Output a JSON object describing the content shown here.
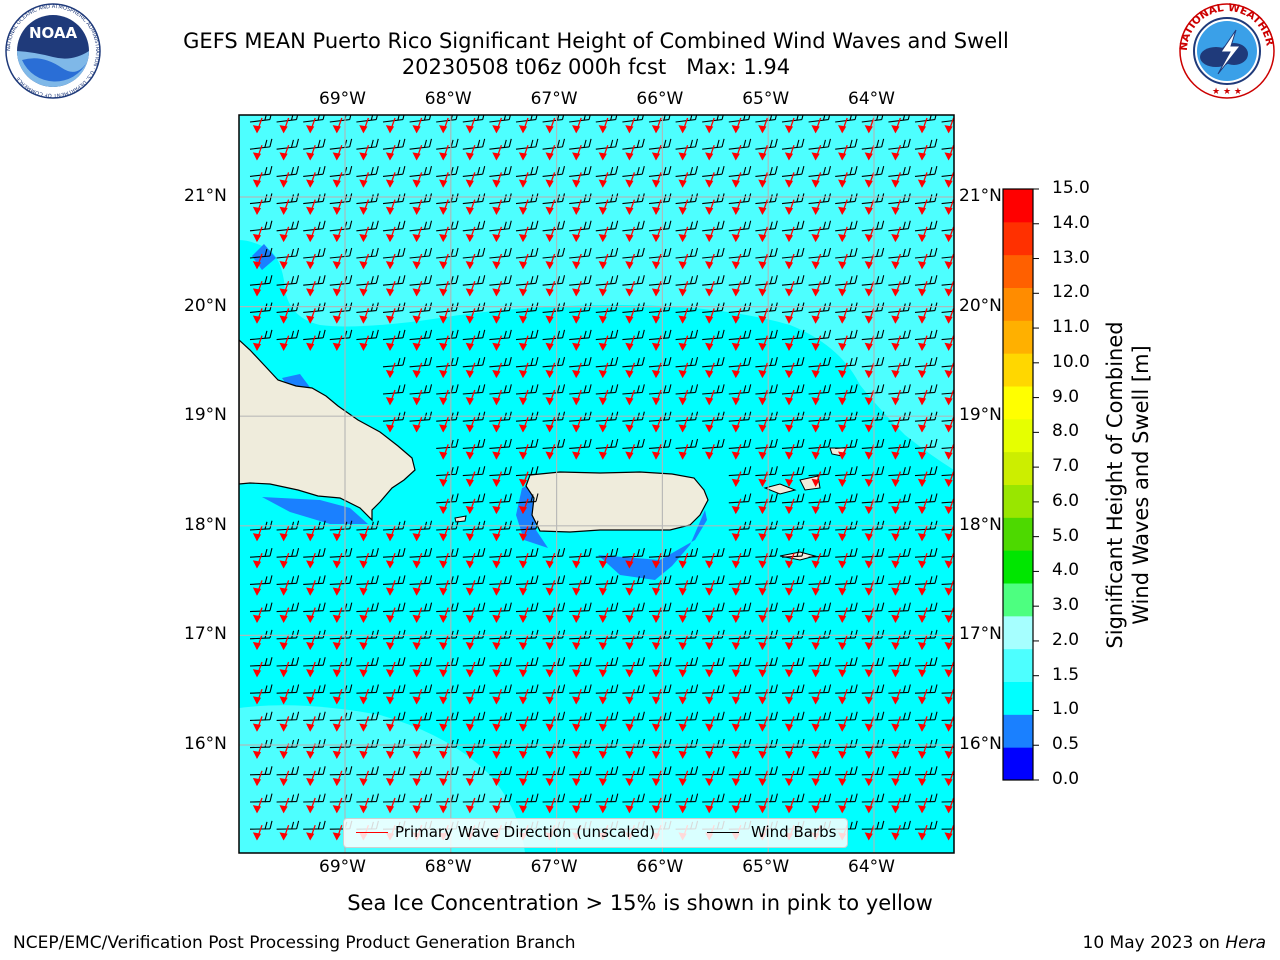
{
  "title": {
    "line1": "GEFS MEAN Puerto Rico Significant Height of Combined Wind Waves and Swell",
    "line2": "20230508 t06z 000h fcst   Max: 1.94"
  },
  "logos": {
    "left_text": "NOAA",
    "left_ring": "NATIONAL OCEANIC AND ATMOSPHERIC ADMINISTRATION · U.S. DEPARTMENT OF COMMERCE",
    "right_ring": "NATIONAL WEATHER SERVICE"
  },
  "map": {
    "lon_labels": [
      "69°W",
      "68°W",
      "67°W",
      "66°W",
      "65°W",
      "64°W"
    ],
    "lat_labels": [
      "21°N",
      "20°N",
      "19°N",
      "18°N",
      "17°N",
      "16°N"
    ],
    "lon_range": [
      -70.0,
      -63.25
    ],
    "lat_range": [
      15.0,
      21.75
    ],
    "ocean_color": "#00ffff",
    "land_color": "#efecdc"
  },
  "legend": {
    "wave_label": "Primary Wave Direction (unscaled)",
    "wave_color": "#ff0000",
    "barb_label": "Wind Barbs",
    "barb_color": "#000000"
  },
  "colorbar": {
    "title_line1": "Significant Height of Combined",
    "title_line2": "Wind Waves and Swell [m]",
    "ticks": [
      "0.0",
      "0.5",
      "1.0",
      "1.5",
      "2.0",
      "3.0",
      "4.0",
      "5.0",
      "6.0",
      "7.0",
      "8.0",
      "9.0",
      "10.0",
      "11.0",
      "12.0",
      "13.0",
      "14.0",
      "15.0"
    ],
    "colors": [
      "#0000ff",
      "#1a80ff",
      "#00ffff",
      "#4dffff",
      "#a6ffff",
      "#4dff80",
      "#00e600",
      "#4dd900",
      "#99e600",
      "#ccee00",
      "#e6ff00",
      "#ffff00",
      "#ffd700",
      "#ffb000",
      "#ff8c00",
      "#ff6000",
      "#ff3000",
      "#ff0000"
    ]
  },
  "footer": {
    "note": "Sea Ice Concentration > 15% is shown in pink to yellow",
    "left": "NCEP/EMC/Verification Post Processing Product Generation Branch",
    "right_prefix": "10 May 2023 on ",
    "right_machine": "Hera"
  }
}
